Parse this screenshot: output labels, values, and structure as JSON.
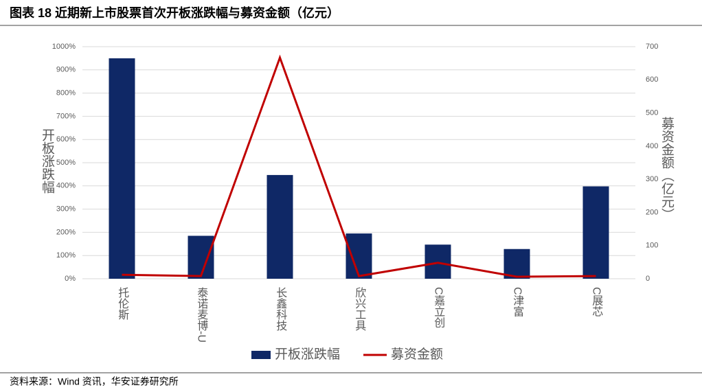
{
  "title": "图表 18 近期新上市股票首次开板涨跌幅与募资金额（亿元）",
  "source": "资料来源：Wind 资讯，华安证券研究所",
  "chart_data": {
    "type": "bar",
    "categories": [
      "托伦斯",
      "泰诺麦博-U",
      "长鑫科技",
      "欣兴工具",
      "C嘉立创",
      "C津富",
      "C展芯"
    ],
    "series": [
      {
        "name": "开板涨跌幅",
        "type": "bar",
        "color": "#0f2866",
        "values": [
          950,
          185,
          447,
          195,
          147,
          128,
          398
        ]
      },
      {
        "name": "募资金额",
        "type": "line",
        "axis": "y2",
        "color": "#c00000",
        "values": [
          12,
          8,
          667,
          8,
          48,
          6,
          8
        ]
      }
    ],
    "ylabel": "开板涨跌幅",
    "y2label": "募资金额（亿元）",
    "ylim": [
      0,
      1000
    ],
    "yticks": [
      {
        "value": 0,
        "label": "0%"
      },
      {
        "value": 100,
        "label": "100%"
      },
      {
        "value": 200,
        "label": "200%"
      },
      {
        "value": 300,
        "label": "300%"
      },
      {
        "value": 400,
        "label": "400%"
      },
      {
        "value": 500,
        "label": "500%"
      },
      {
        "value": 600,
        "label": "600%"
      },
      {
        "value": 700,
        "label": "700%"
      },
      {
        "value": 800,
        "label": "800%"
      },
      {
        "value": 900,
        "label": "900%"
      },
      {
        "value": 1000,
        "label": "1000%"
      }
    ],
    "y2lim": [
      0,
      700
    ],
    "y2ticks": [
      0,
      100,
      200,
      300,
      400,
      500,
      600,
      700
    ],
    "grid": true,
    "legend": "bottom"
  }
}
